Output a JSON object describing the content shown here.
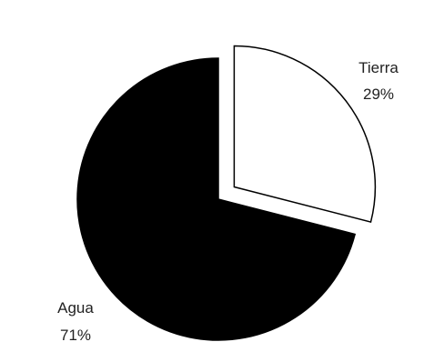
{
  "chart_data": {
    "type": "pie",
    "exploded_slice": "Tierra",
    "slices": [
      {
        "label": "Tierra",
        "value_label": "29%",
        "value": 29,
        "color": "#ffffff",
        "stroke": "#000000"
      },
      {
        "label": "Agua",
        "value_label": "71%",
        "value": 71,
        "color": "#000000",
        "stroke": "#000000"
      }
    ]
  }
}
